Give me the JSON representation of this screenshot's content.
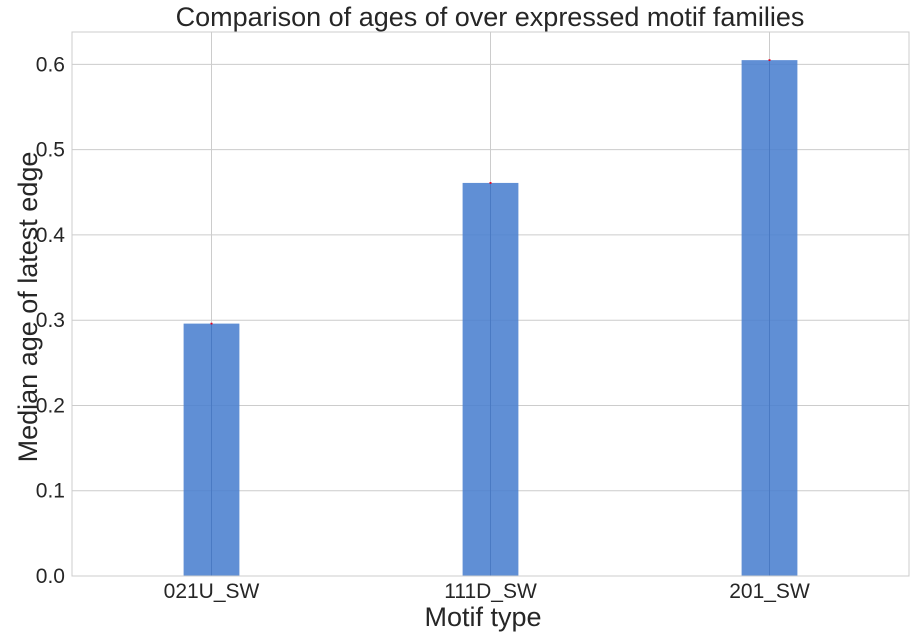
{
  "chart_data": {
    "type": "bar",
    "title": "Comparison of ages of over expressed motif families",
    "xlabel": "Motif type",
    "ylabel": "Median age of latest edge",
    "categories": [
      "021U_SW",
      "111D_SW",
      "201_SW"
    ],
    "values": [
      0.296,
      0.461,
      0.605
    ],
    "error": [
      0.001,
      0.001,
      0.001
    ],
    "ylim": [
      0,
      0.638
    ],
    "yticks": [
      "0.0",
      "0.1",
      "0.2",
      "0.3",
      "0.4",
      "0.5",
      "0.6"
    ],
    "grid": true,
    "bar_color": "#4a7fcf",
    "error_color": "#e8001c"
  }
}
